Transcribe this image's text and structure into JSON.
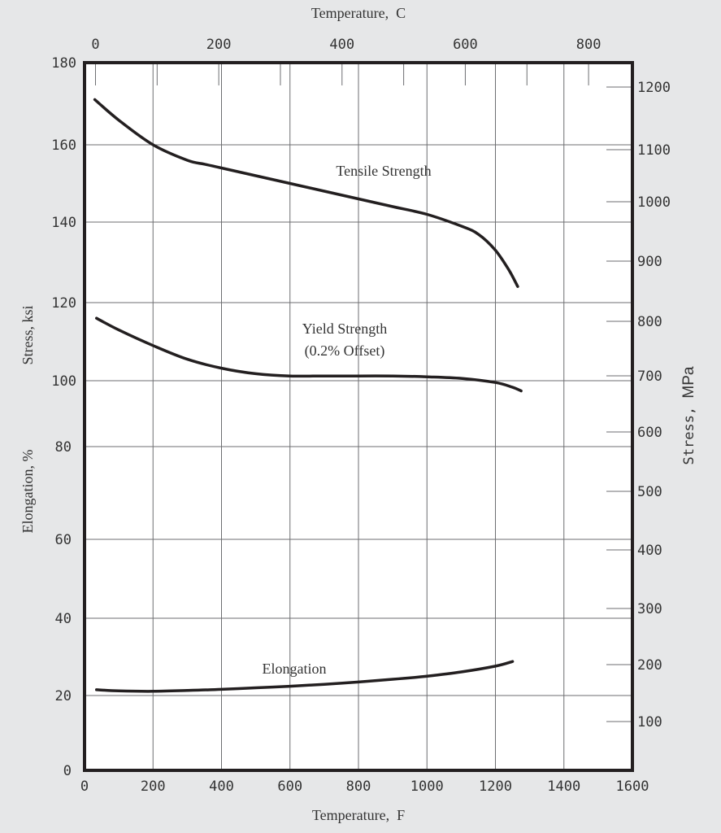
{
  "chart_data": {
    "type": "line",
    "title": "",
    "xlabel": "Temperature,  F",
    "x2label": "Temperature,  C",
    "ylabel_stress_ksi": "Stress, ksi",
    "ylabel_elongation": "Elongation, %",
    "y2label_prefix": "Stress, ",
    "y2label_unit": "MPa",
    "xlim": [
      0,
      1600
    ],
    "x_ticks": [
      "0",
      "200",
      "400",
      "600",
      "800",
      "1000",
      "1200",
      "1400",
      "1600"
    ],
    "top_ticks": [
      "0",
      "200",
      "400",
      "600",
      "800"
    ],
    "left_ticks_stress": [
      "180",
      "160",
      "140",
      "120",
      "100"
    ],
    "left_ticks_elongation": [
      "80",
      "60",
      "40",
      "20",
      "0"
    ],
    "right_ticks": [
      "1200",
      "1100",
      "1000",
      "900",
      "800",
      "700",
      "600",
      "500",
      "400",
      "300",
      "200",
      "100"
    ],
    "grid": true,
    "series": [
      {
        "name": "Tensile Strength",
        "x": [
          30,
          100,
          200,
          300,
          350,
          400,
          500,
          600,
          700,
          800,
          900,
          1000,
          1100,
          1150,
          1200,
          1240,
          1265
        ],
        "y": [
          171,
          166,
          160,
          156,
          155,
          154,
          152,
          150,
          148,
          146,
          144,
          142,
          139,
          137,
          133,
          128,
          124
        ]
      },
      {
        "name": "Yield Strength",
        "note": "(0.2% Offset)",
        "x": [
          35,
          100,
          200,
          300,
          400,
          500,
          600,
          700,
          800,
          900,
          1000,
          1100,
          1200,
          1250,
          1275
        ],
        "y": [
          116,
          113,
          109,
          105.5,
          103.2,
          101.8,
          101.2,
          101.2,
          101.2,
          101.2,
          101,
          100.6,
          99.4,
          97.8,
          96.6
        ]
      },
      {
        "name": "Elongation",
        "x": [
          35,
          100,
          200,
          300,
          400,
          500,
          600,
          700,
          800,
          900,
          1000,
          1100,
          1200,
          1250
        ],
        "y": [
          21.5,
          21.2,
          21.1,
          21.3,
          21.6,
          22,
          22.4,
          22.9,
          23.5,
          24.2,
          25,
          26.1,
          27.6,
          28.8
        ]
      }
    ]
  }
}
